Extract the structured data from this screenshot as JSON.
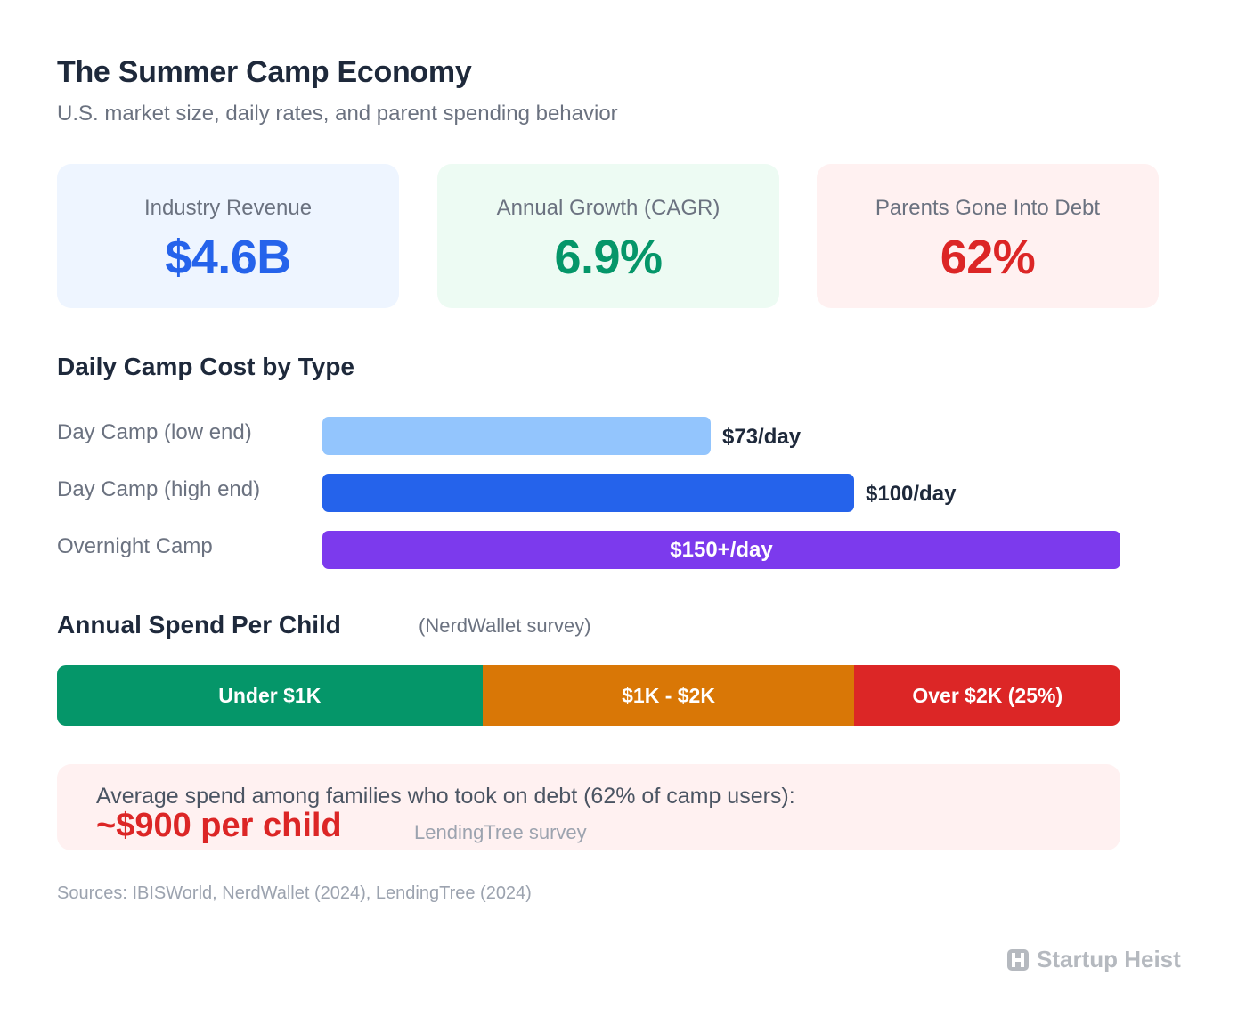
{
  "header": {
    "title": "The Summer Camp Economy",
    "subtitle": "U.S. market size, daily rates, and parent spending behavior"
  },
  "stats": {
    "revenue": {
      "label": "Industry Revenue",
      "value": "$4.6B",
      "color": "#2563eb"
    },
    "cagr": {
      "label": "Annual Growth (CAGR)",
      "value": "6.9%",
      "color": "#059669"
    },
    "debt": {
      "label": "Parents Gone Into Debt",
      "value": "62%",
      "color": "#dc2626"
    }
  },
  "daily": {
    "title": "Daily Camp Cost by Type"
  },
  "annual": {
    "title": "Annual Spend Per Child",
    "note": "(NerdWallet survey)"
  },
  "callout": {
    "line1": "Average spend among families who took on debt (62% of camp users):",
    "amount": "~$900 per child",
    "source": "LendingTree survey"
  },
  "footer": {
    "sources": "Sources: IBISWorld, NerdWallet (2024), LendingTree (2024)",
    "brand": "Startup Heist"
  },
  "chart_data": [
    {
      "type": "bar",
      "orientation": "horizontal",
      "title": "Daily Camp Cost by Type",
      "categories": [
        "Day Camp (low end)",
        "Day Camp (high end)",
        "Overnight Camp"
      ],
      "values": [
        73,
        100,
        150
      ],
      "value_labels": [
        "$73/day",
        "$100/day",
        "$150+/day"
      ],
      "colors": [
        "#93c5fd",
        "#2563eb",
        "#7c3aed"
      ],
      "xlim": [
        0,
        150
      ]
    },
    {
      "type": "bar",
      "orientation": "stacked-horizontal",
      "title": "Annual Spend Per Child",
      "categories": [
        "Under $1K",
        "$1K - $2K",
        "Over $2K (25%)"
      ],
      "values": [
        40,
        35,
        25
      ],
      "colors": [
        "#059669",
        "#d97706",
        "#dc2626"
      ]
    }
  ]
}
